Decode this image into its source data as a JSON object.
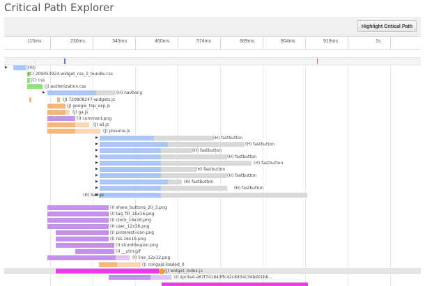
{
  "page": {
    "title": "Critical Path Explorer"
  },
  "toolbar": {
    "highlight_label": "Highlight Critical Path"
  },
  "ruler": {
    "ticks": [
      "115ms",
      "230ms",
      "345ms",
      "460ms",
      "574ms",
      "689ms",
      "804ms",
      "919ms",
      "1s"
    ]
  },
  "colors": {
    "blue": "#a9c7f6",
    "blue_light": "#cfe0fb",
    "green": "#8fe07f",
    "orange": "#f6b87a",
    "orange_light": "#fbd8b5",
    "purple": "#c592ea",
    "purple_light": "#e0c6f4",
    "magenta": "#e83ee8",
    "gray": "#d9d9d9",
    "row_highlight": "#e5e5e5"
  },
  "rows": [
    {
      "name": "row-root",
      "label": "(H)/",
      "expand": true
    },
    {
      "name": "row-widget-css-bundle",
      "label": "(C) 209053924-widget_css_2_bundle.css"
    },
    {
      "name": "row-css",
      "label": "(C) css"
    },
    {
      "name": "row-authorization-css",
      "label": "(J) authorization.css"
    },
    {
      "name": "row-navbar",
      "label": "(H) navbar.g",
      "expand": true
    },
    {
      "name": "row-widgets-js",
      "label": "(J) 720808247-widgets.js"
    },
    {
      "name": "row-google-top-exp",
      "label": "(J) google_top_exp.js"
    },
    {
      "name": "row-ga-js",
      "label": "(J) ga.js"
    },
    {
      "name": "row-comment-png",
      "label": "(I) comment.png"
    },
    {
      "name": "row-all-js",
      "label": "(J) all.js"
    },
    {
      "name": "row-plusone-js",
      "label": "(J) plusone.js"
    },
    {
      "name": "row-fastbutton-1",
      "label": "(H) fastbutton",
      "expand": true
    },
    {
      "name": "row-fastbutton-2",
      "label": "(H) fastbutton",
      "expand": true
    },
    {
      "name": "row-fastbutton-3",
      "label": "(H) fastbutton",
      "expand": true
    },
    {
      "name": "row-fastbutton-4",
      "label": "(H) fastbutton",
      "expand": true
    },
    {
      "name": "row-fastbutton-5",
      "label": "(H) fastbutton",
      "expand": true
    },
    {
      "name": "row-fastbutton-6",
      "label": "(H) fastbutton",
      "expand": true
    },
    {
      "name": "row-fastbutton-7",
      "label": "(H) fastbutton",
      "expand": true
    },
    {
      "name": "row-fastbutton-8",
      "label": "(H) fastbutton",
      "expand": true
    },
    {
      "name": "row-fastbutton-9",
      "label": "(H) fastbutton",
      "expand": true
    },
    {
      "name": "row-badge",
      "label": "(H) badge",
      "expand": true
    },
    {
      "name": "row-share-buttons",
      "label": "(I) share_buttons_20_3.png"
    },
    {
      "name": "row-tag-fill",
      "label": "(I) tag_fill_16x16.png"
    },
    {
      "name": "row-clock",
      "label": "(I) clock_16x16.png"
    },
    {
      "name": "row-user",
      "label": "(I) user_12x16.png"
    },
    {
      "name": "row-pinterest-icon",
      "label": "(I) pinterest-icon.png"
    },
    {
      "name": "row-rss",
      "label": "(I) rss-16x16.png"
    },
    {
      "name": "row-stumbleupon",
      "label": "(I) stumbleupon.png"
    },
    {
      "name": "row-utm-gif",
      "label": "(I) __utm.gif"
    },
    {
      "name": "row-line",
      "label": "(I) line_12x12.png"
    },
    {
      "name": "row-conga-loaded",
      "label": "(J) congajs:loaded_0"
    },
    {
      "name": "row-widget-index",
      "label": "(J) widget_index.js",
      "highlight": true
    },
    {
      "name": "row-sprite",
      "label": "(I) sprite4-a67f741843ffc42c8834c34bd01bb..."
    }
  ]
}
